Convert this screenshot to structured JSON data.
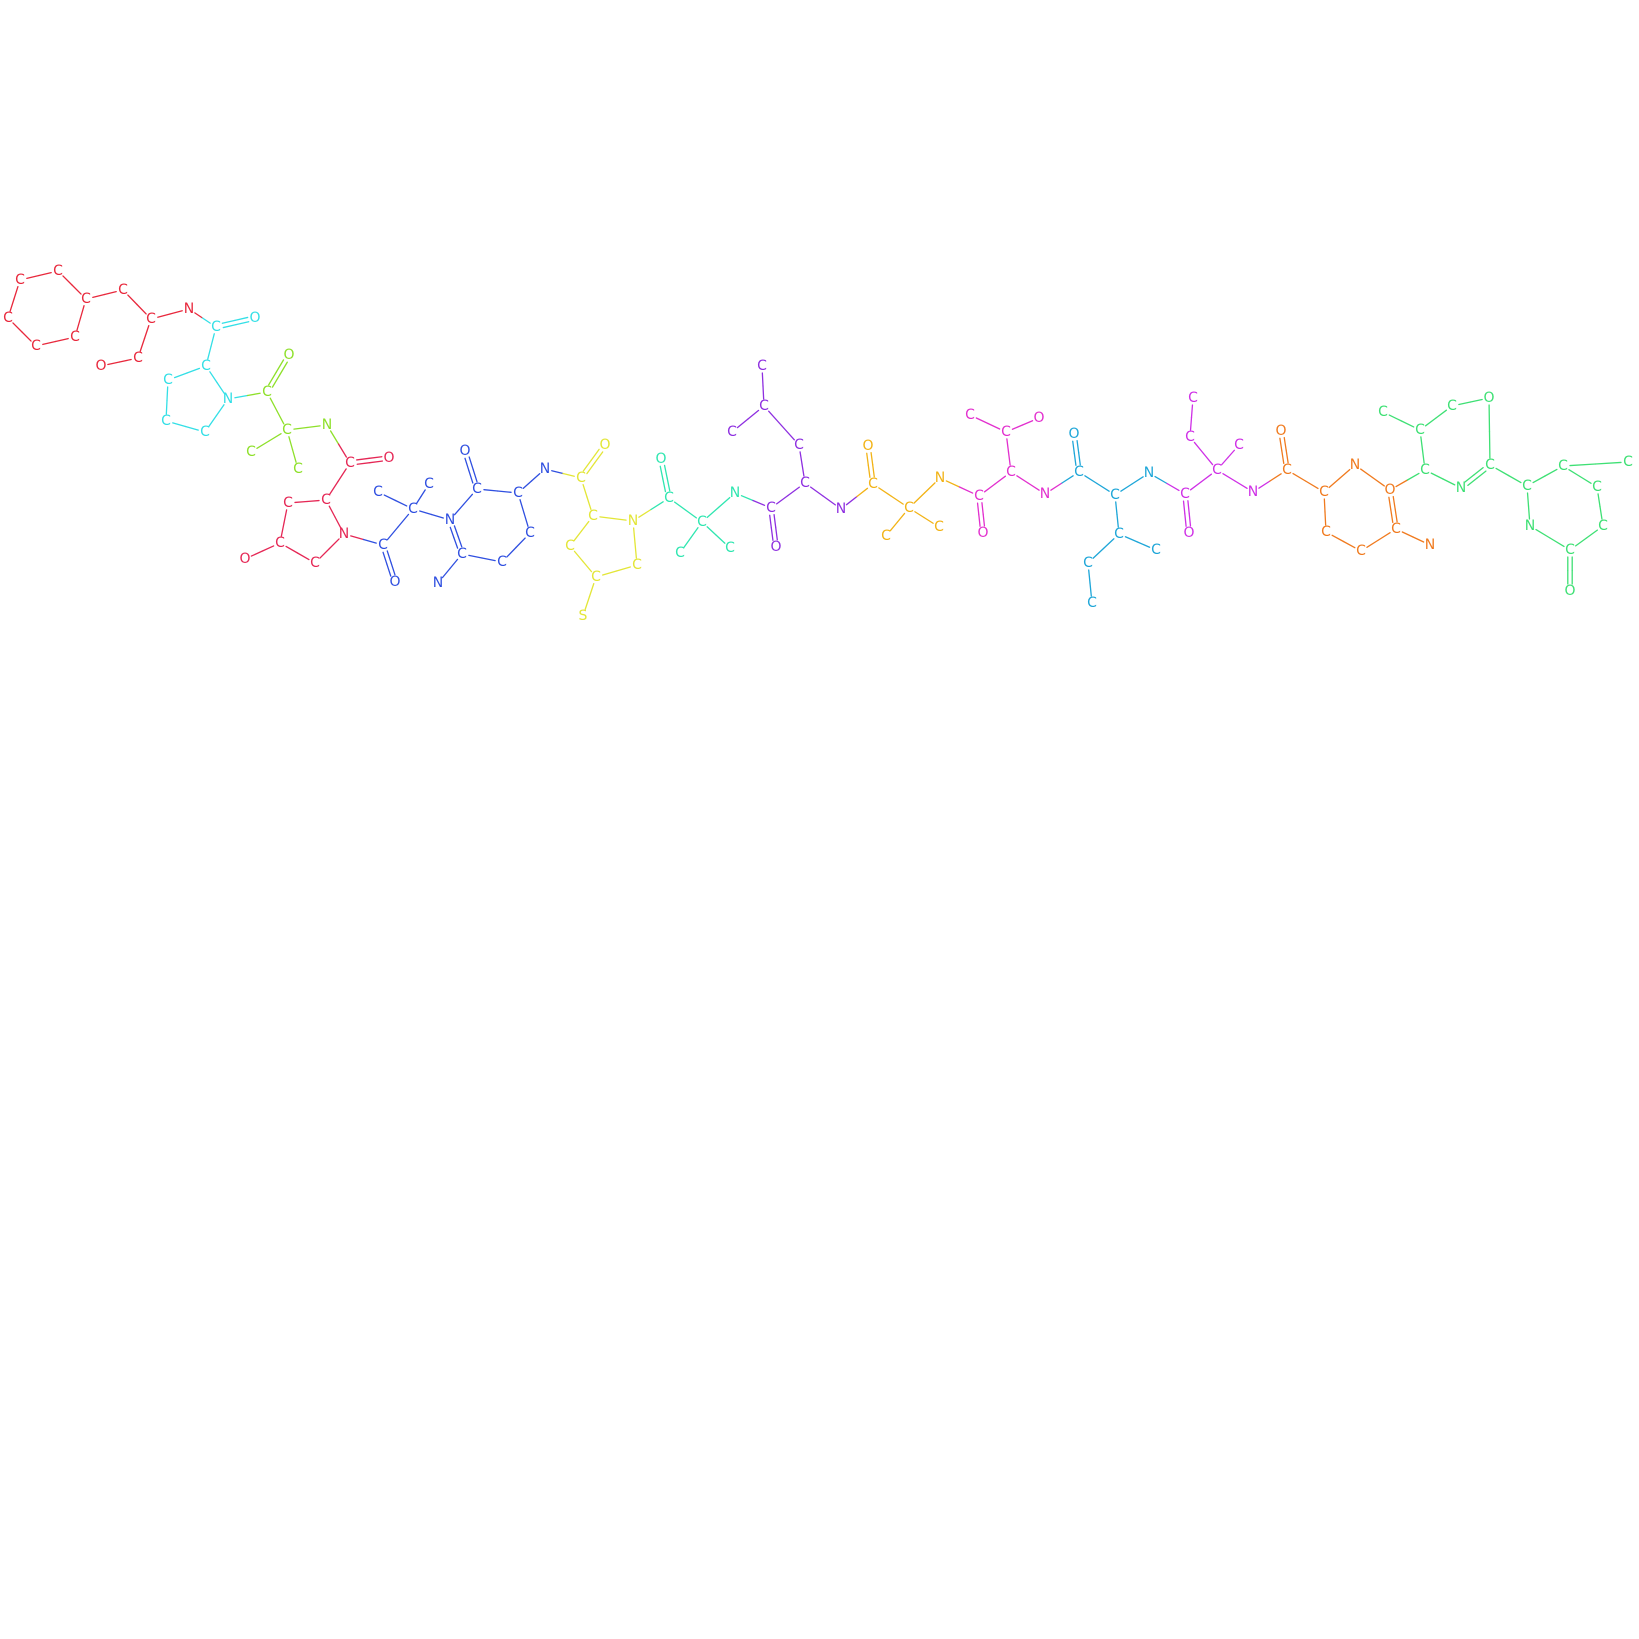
{
  "diagram": {
    "groups": [
      {
        "id": "g0",
        "color": "#e8283c"
      },
      {
        "id": "g1",
        "color": "#33dfe6"
      },
      {
        "id": "g2",
        "color": "#8ee02a"
      },
      {
        "id": "g3",
        "color": "#e52755"
      },
      {
        "id": "g4",
        "color": "#2f4fe0"
      },
      {
        "id": "g5",
        "color": "#e3e637"
      },
      {
        "id": "g6",
        "color": "#2fe6b0"
      },
      {
        "id": "g7",
        "color": "#8e2fe0"
      },
      {
        "id": "g8",
        "color": "#f2b316"
      },
      {
        "id": "g9",
        "color": "#e22fce"
      },
      {
        "id": "g10",
        "color": "#1ea6d8"
      },
      {
        "id": "g11",
        "color": "#cf2fe6"
      },
      {
        "id": "g12",
        "color": "#f07a1e"
      },
      {
        "id": "g13",
        "color": "#3ee074"
      }
    ],
    "atoms": [
      {
        "id": "a0",
        "label": "C",
        "group": "g0"
      },
      {
        "id": "a1",
        "label": "C",
        "group": "g0"
      },
      {
        "id": "a2",
        "label": "C",
        "group": "g0"
      },
      {
        "id": "a3",
        "label": "C",
        "group": "g0"
      },
      {
        "id": "a4",
        "label": "C",
        "group": "g0"
      },
      {
        "id": "a5",
        "label": "C",
        "group": "g0"
      },
      {
        "id": "a6",
        "label": "C",
        "group": "g0"
      },
      {
        "id": "a7",
        "label": "C",
        "group": "g0"
      },
      {
        "id": "a8",
        "label": "N",
        "group": "g0"
      },
      {
        "id": "a9",
        "label": "C",
        "group": "g0"
      },
      {
        "id": "a10",
        "label": "O",
        "group": "g0"
      },
      {
        "id": "b0",
        "label": "C",
        "group": "g1"
      },
      {
        "id": "b1",
        "label": "O",
        "group": "g1"
      },
      {
        "id": "b2",
        "label": "C",
        "group": "g1"
      },
      {
        "id": "b3",
        "label": "C",
        "group": "g1"
      },
      {
        "id": "b4",
        "label": "C",
        "group": "g1"
      },
      {
        "id": "b5",
        "label": "C",
        "group": "g1"
      },
      {
        "id": "b6",
        "label": "N",
        "group": "g1"
      },
      {
        "id": "c0",
        "label": "C",
        "group": "g2"
      },
      {
        "id": "c1",
        "label": "O",
        "group": "g2"
      },
      {
        "id": "c2",
        "label": "C",
        "group": "g2"
      },
      {
        "id": "c3",
        "label": "C",
        "group": "g2"
      },
      {
        "id": "c4",
        "label": "C",
        "group": "g2"
      },
      {
        "id": "c5",
        "label": "N",
        "group": "g2"
      },
      {
        "id": "d0",
        "label": "C",
        "group": "g3"
      },
      {
        "id": "d1",
        "label": "O",
        "group": "g3"
      },
      {
        "id": "d2",
        "label": "C",
        "group": "g3"
      },
      {
        "id": "d3",
        "label": "C",
        "group": "g3"
      },
      {
        "id": "d4",
        "label": "C",
        "group": "g3"
      },
      {
        "id": "d5",
        "label": "O",
        "group": "g3"
      },
      {
        "id": "d6",
        "label": "C",
        "group": "g3"
      },
      {
        "id": "d7",
        "label": "N",
        "group": "g3"
      },
      {
        "id": "e0",
        "label": "C",
        "group": "g4"
      },
      {
        "id": "e1",
        "label": "O",
        "group": "g4"
      },
      {
        "id": "e2",
        "label": "C",
        "group": "g4"
      },
      {
        "id": "e3",
        "label": "C",
        "group": "g4"
      },
      {
        "id": "e4",
        "label": "C",
        "group": "g4"
      },
      {
        "id": "e5",
        "label": "N",
        "group": "g4"
      },
      {
        "id": "e6",
        "label": "C",
        "group": "g4"
      },
      {
        "id": "e7",
        "label": "O",
        "group": "g4"
      },
      {
        "id": "e8",
        "label": "C",
        "group": "g4"
      },
      {
        "id": "e9",
        "label": "C",
        "group": "g4"
      },
      {
        "id": "e10",
        "label": "C",
        "group": "g4"
      },
      {
        "id": "e11",
        "label": "C",
        "group": "g4"
      },
      {
        "id": "e12",
        "label": "N",
        "group": "g4"
      },
      {
        "id": "e13",
        "label": "N",
        "group": "g4"
      },
      {
        "id": "f0",
        "label": "C",
        "group": "g5"
      },
      {
        "id": "f1",
        "label": "O",
        "group": "g5"
      },
      {
        "id": "f2",
        "label": "C",
        "group": "g5"
      },
      {
        "id": "f3",
        "label": "C",
        "group": "g5"
      },
      {
        "id": "f4",
        "label": "C",
        "group": "g5"
      },
      {
        "id": "f5",
        "label": "S",
        "group": "g5"
      },
      {
        "id": "f6",
        "label": "C",
        "group": "g5"
      },
      {
        "id": "f7",
        "label": "N",
        "group": "g5"
      },
      {
        "id": "h0",
        "label": "C",
        "group": "g6"
      },
      {
        "id": "h1",
        "label": "O",
        "group": "g6"
      },
      {
        "id": "h2",
        "label": "C",
        "group": "g6"
      },
      {
        "id": "h3",
        "label": "C",
        "group": "g6"
      },
      {
        "id": "h4",
        "label": "C",
        "group": "g6"
      },
      {
        "id": "h5",
        "label": "N",
        "group": "g6"
      },
      {
        "id": "i0",
        "label": "C",
        "group": "g7"
      },
      {
        "id": "i1",
        "label": "O",
        "group": "g7"
      },
      {
        "id": "i2",
        "label": "C",
        "group": "g7"
      },
      {
        "id": "i3",
        "label": "C",
        "group": "g7"
      },
      {
        "id": "i4",
        "label": "C",
        "group": "g7"
      },
      {
        "id": "i5",
        "label": "C",
        "group": "g7"
      },
      {
        "id": "i6",
        "label": "C",
        "group": "g7"
      },
      {
        "id": "i7",
        "label": "C",
        "group": "g7"
      },
      {
        "id": "i8",
        "label": "N",
        "group": "g7"
      },
      {
        "id": "j0",
        "label": "C",
        "group": "g8"
      },
      {
        "id": "j1",
        "label": "O",
        "group": "g8"
      },
      {
        "id": "j2",
        "label": "C",
        "group": "g8"
      },
      {
        "id": "j3",
        "label": "C",
        "group": "g8"
      },
      {
        "id": "j4",
        "label": "C",
        "group": "g8"
      },
      {
        "id": "j5",
        "label": "N",
        "group": "g8"
      },
      {
        "id": "k0",
        "label": "C",
        "group": "g9"
      },
      {
        "id": "k1",
        "label": "O",
        "group": "g9"
      },
      {
        "id": "k2",
        "label": "C",
        "group": "g9"
      },
      {
        "id": "k3",
        "label": "C",
        "group": "g9"
      },
      {
        "id": "k4",
        "label": "C",
        "group": "g9"
      },
      {
        "id": "k5",
        "label": "O",
        "group": "g9"
      },
      {
        "id": "k6",
        "label": "N",
        "group": "g9"
      },
      {
        "id": "l0",
        "label": "C",
        "group": "g10"
      },
      {
        "id": "l1",
        "label": "O",
        "group": "g10"
      },
      {
        "id": "l2",
        "label": "C",
        "group": "g10"
      },
      {
        "id": "l3",
        "label": "C",
        "group": "g10"
      },
      {
        "id": "l4",
        "label": "C",
        "group": "g10"
      },
      {
        "id": "l5",
        "label": "C",
        "group": "g10"
      },
      {
        "id": "l6",
        "label": "C",
        "group": "g10"
      },
      {
        "id": "l7",
        "label": "N",
        "group": "g10"
      },
      {
        "id": "m0",
        "label": "C",
        "group": "g11"
      },
      {
        "id": "m1",
        "label": "O",
        "group": "g11"
      },
      {
        "id": "m2",
        "label": "C",
        "group": "g11"
      },
      {
        "id": "m3",
        "label": "C",
        "group": "g11"
      },
      {
        "id": "m4",
        "label": "C",
        "group": "g11"
      },
      {
        "id": "m5",
        "label": "C",
        "group": "g11"
      },
      {
        "id": "m6",
        "label": "N",
        "group": "g11"
      },
      {
        "id": "n0",
        "label": "C",
        "group": "g12"
      },
      {
        "id": "n1",
        "label": "O",
        "group": "g12"
      },
      {
        "id": "n2",
        "label": "C",
        "group": "g12"
      },
      {
        "id": "n3",
        "label": "C",
        "group": "g12"
      },
      {
        "id": "n4",
        "label": "C",
        "group": "g12"
      },
      {
        "id": "n5",
        "label": "C",
        "group": "g12"
      },
      {
        "id": "n6",
        "label": "O",
        "group": "g12"
      },
      {
        "id": "n7",
        "label": "N",
        "group": "g12"
      },
      {
        "id": "n8",
        "label": "N",
        "group": "g12"
      },
      {
        "id": "o0",
        "label": "C",
        "group": "g13"
      },
      {
        "id": "o1",
        "label": "O",
        "group": "g13"
      },
      {
        "id": "o2",
        "label": "C",
        "group": "g13"
      },
      {
        "id": "o3",
        "label": "C",
        "group": "g13"
      },
      {
        "id": "o4",
        "label": "C",
        "group": "g13"
      },
      {
        "id": "o5",
        "label": "N",
        "group": "g13"
      },
      {
        "id": "o6",
        "label": "C",
        "group": "g13"
      },
      {
        "id": "o7",
        "label": "C",
        "group": "g13"
      },
      {
        "id": "o8",
        "label": "C",
        "group": "g13"
      },
      {
        "id": "o9",
        "label": "C",
        "group": "g13"
      },
      {
        "id": "o10",
        "label": "C",
        "group": "g13"
      },
      {
        "id": "o11",
        "label": "C",
        "group": "g13"
      },
      {
        "id": "o12",
        "label": "N",
        "group": "g13"
      },
      {
        "id": "o13",
        "label": "O",
        "group": "g13"
      },
      {
        "id": "o14",
        "label": "C",
        "group": "g13"
      }
    ],
    "bonds": [
      [
        "a0",
        "a1",
        1
      ],
      [
        "a1",
        "a2",
        1
      ],
      [
        "a2",
        "a3",
        1
      ],
      [
        "a3",
        "a4",
        1
      ],
      [
        "a4",
        "a5",
        1
      ],
      [
        "a5",
        "a0",
        1
      ],
      [
        "a2",
        "a6",
        1
      ],
      [
        "a6",
        "a7",
        1
      ],
      [
        "a7",
        "a8",
        1
      ],
      [
        "a7",
        "a9",
        1
      ],
      [
        "a9",
        "a10",
        1
      ],
      [
        "a8",
        "b0",
        1
      ],
      [
        "b0",
        "b1",
        2
      ],
      [
        "b0",
        "b2",
        1
      ],
      [
        "b2",
        "b3",
        1
      ],
      [
        "b3",
        "b4",
        1
      ],
      [
        "b4",
        "b5",
        1
      ],
      [
        "b5",
        "b6",
        1
      ],
      [
        "b6",
        "b2",
        1
      ],
      [
        "b6",
        "c0",
        1
      ],
      [
        "c0",
        "c1",
        2
      ],
      [
        "c0",
        "c2",
        1
      ],
      [
        "c2",
        "c3",
        1
      ],
      [
        "c2",
        "c4",
        1
      ],
      [
        "c2",
        "c5",
        1
      ],
      [
        "c5",
        "d0",
        1
      ],
      [
        "d0",
        "d1",
        2
      ],
      [
        "d0",
        "d2",
        1
      ],
      [
        "d2",
        "d3",
        1
      ],
      [
        "d3",
        "d4",
        1
      ],
      [
        "d4",
        "d5",
        1
      ],
      [
        "d4",
        "d6",
        1
      ],
      [
        "d6",
        "d7",
        1
      ],
      [
        "d7",
        "d2",
        1
      ],
      [
        "d7",
        "e0",
        1
      ],
      [
        "e0",
        "e1",
        2
      ],
      [
        "e0",
        "e2",
        1
      ],
      [
        "e2",
        "e3",
        1
      ],
      [
        "e2",
        "e4",
        1
      ],
      [
        "e2",
        "e5",
        1
      ],
      [
        "e5",
        "e6",
        1
      ],
      [
        "e6",
        "e7",
        2
      ],
      [
        "e6",
        "e8",
        1
      ],
      [
        "e8",
        "e9",
        1
      ],
      [
        "e9",
        "e10",
        1
      ],
      [
        "e10",
        "e11",
        1
      ],
      [
        "e11",
        "e5",
        2
      ],
      [
        "e11",
        "e12",
        1
      ],
      [
        "e8",
        "e13",
        1
      ],
      [
        "e13",
        "f0",
        1
      ],
      [
        "f0",
        "f1",
        2
      ],
      [
        "f0",
        "f2",
        1
      ],
      [
        "f2",
        "f3",
        1
      ],
      [
        "f3",
        "f4",
        1
      ],
      [
        "f4",
        "f5",
        1
      ],
      [
        "f4",
        "f6",
        1
      ],
      [
        "f6",
        "f7",
        1
      ],
      [
        "f7",
        "f2",
        1
      ],
      [
        "f7",
        "h0",
        1
      ],
      [
        "h0",
        "h1",
        2
      ],
      [
        "h0",
        "h2",
        1
      ],
      [
        "h2",
        "h3",
        1
      ],
      [
        "h2",
        "h4",
        1
      ],
      [
        "h2",
        "h5",
        1
      ],
      [
        "h5",
        "i0",
        1
      ],
      [
        "i0",
        "i1",
        2
      ],
      [
        "i0",
        "i2",
        1
      ],
      [
        "i2",
        "i3",
        1
      ],
      [
        "i3",
        "i4",
        1
      ],
      [
        "i4",
        "i5",
        1
      ],
      [
        "i4",
        "i6",
        1
      ],
      [
        "i2",
        "i8",
        1
      ],
      [
        "i8",
        "j0",
        1
      ],
      [
        "j0",
        "j1",
        2
      ],
      [
        "j0",
        "j2",
        1
      ],
      [
        "j2",
        "j3",
        1
      ],
      [
        "j2",
        "j4",
        1
      ],
      [
        "j2",
        "j5",
        1
      ],
      [
        "j5",
        "k0",
        1
      ],
      [
        "k0",
        "k1",
        2
      ],
      [
        "k0",
        "k2",
        1
      ],
      [
        "k2",
        "k3",
        1
      ],
      [
        "k3",
        "k4",
        1
      ],
      [
        "k3",
        "k5",
        1
      ],
      [
        "k2",
        "k6",
        1
      ],
      [
        "k6",
        "l0",
        1
      ],
      [
        "l0",
        "l1",
        2
      ],
      [
        "l0",
        "l2",
        1
      ],
      [
        "l2",
        "l3",
        1
      ],
      [
        "l3",
        "l4",
        1
      ],
      [
        "l4",
        "l5",
        1
      ],
      [
        "l3",
        "l6",
        1
      ],
      [
        "l2",
        "l7",
        1
      ],
      [
        "l7",
        "m0",
        1
      ],
      [
        "m0",
        "m1",
        2
      ],
      [
        "m0",
        "m2",
        1
      ],
      [
        "m2",
        "m3",
        1
      ],
      [
        "m3",
        "m4",
        1
      ],
      [
        "m2",
        "m5",
        1
      ],
      [
        "m2",
        "m6",
        1
      ],
      [
        "m6",
        "n0",
        1
      ],
      [
        "n0",
        "n1",
        2
      ],
      [
        "n0",
        "n2",
        1
      ],
      [
        "n2",
        "n3",
        1
      ],
      [
        "n3",
        "n4",
        1
      ],
      [
        "n4",
        "n5",
        1
      ],
      [
        "n5",
        "n6",
        2
      ],
      [
        "n5",
        "n7",
        1
      ],
      [
        "n2",
        "n8",
        1
      ],
      [
        "n8",
        "n6",
        1
      ],
      [
        "n6",
        "o0",
        1
      ],
      [
        "o0",
        "o2",
        1
      ],
      [
        "o2",
        "o3",
        1
      ],
      [
        "o0",
        "o5",
        1
      ],
      [
        "o2",
        "o4",
        1
      ],
      [
        "o4",
        "o1",
        1
      ],
      [
        "o5",
        "o6",
        2
      ],
      [
        "o6",
        "o1",
        1
      ],
      [
        "o6",
        "o7",
        1
      ],
      [
        "o7",
        "o8",
        1
      ],
      [
        "o8",
        "o9",
        1
      ],
      [
        "o8",
        "o10",
        1
      ],
      [
        "o10",
        "o11",
        1
      ],
      [
        "o11",
        "o14",
        1
      ],
      [
        "o7",
        "o12",
        1
      ],
      [
        "o12",
        "o14",
        1
      ],
      [
        "o14",
        "o13",
        2
      ]
    ]
  }
}
